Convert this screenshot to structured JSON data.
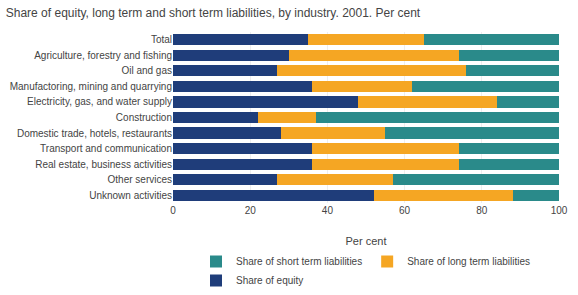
{
  "chart_data": {
    "type": "bar",
    "orientation": "horizontal",
    "stacked": true,
    "title": "Share of equity, long term and short term liabilities, by industry. 2001. Per cent",
    "categories": [
      "Unknown activities",
      "Other services",
      "Real estate, business activities",
      "Transport and communication",
      "Domestic trade, hotels, restaurants",
      "Construction",
      "Electricity, gas, and water supply",
      "Manufactoring, mining and quarrying",
      "Oil and gas",
      "Agriculture, forestry and fishing",
      "Total"
    ],
    "series": [
      {
        "name": "Share of equity",
        "color": "#1f3d7a",
        "values": [
          52,
          27,
          36,
          36,
          28,
          22,
          48,
          36,
          27,
          30,
          35
        ]
      },
      {
        "name": "Share of long term liabilities",
        "color": "#f5a623",
        "values": [
          36,
          30,
          38,
          38,
          27,
          15,
          36,
          26,
          49,
          44,
          30
        ]
      },
      {
        "name": "Share of short term liabilities",
        "color": "#2a8a8a",
        "values": [
          12,
          43,
          26,
          26,
          45,
          63,
          16,
          38,
          24,
          26,
          35
        ]
      }
    ],
    "xlabel": "Per cent",
    "xlim": [
      0,
      100
    ],
    "xticks": [
      0,
      20,
      40,
      60,
      80,
      100
    ],
    "grid": true,
    "legend": "bottom"
  }
}
